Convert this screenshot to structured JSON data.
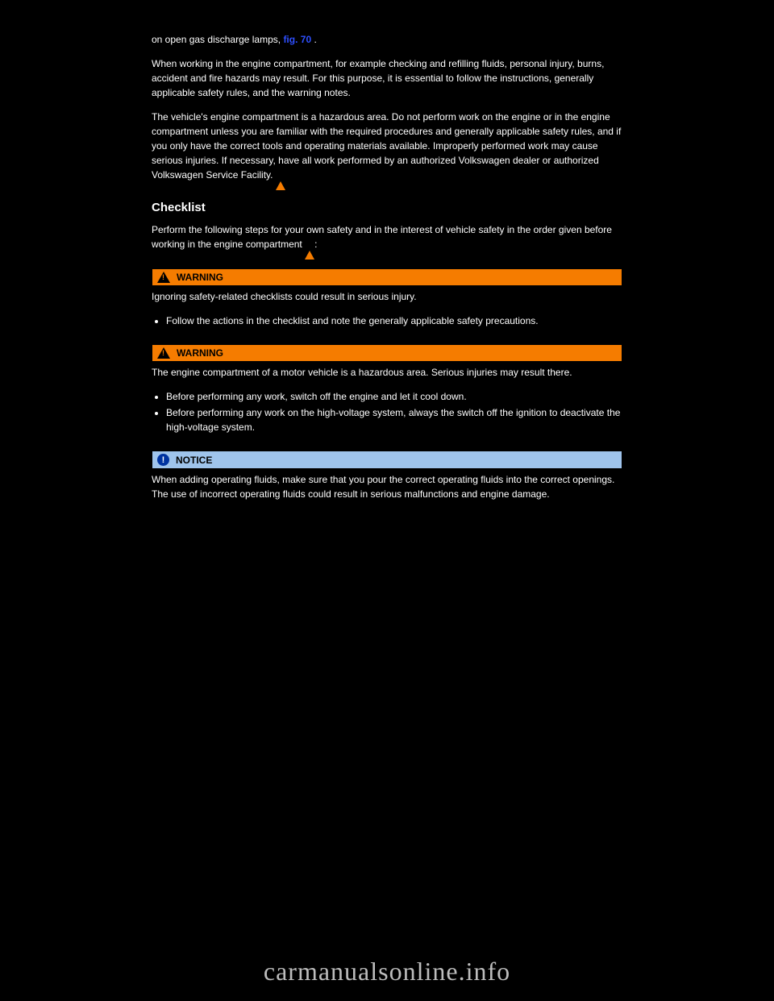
{
  "link_line": {
    "before": "on open gas discharge lamps, ",
    "link_text": "fig. 70",
    "after": " ."
  },
  "intro": "When working in the engine compartment, for example checking and refilling fluids, personal injury, burns, accident and fire hazards may result. For this purpose, it is essential to follow the instructions, generally applicable safety rules, and the warning notes.",
  "engine_comp": "The vehicle's engine compartment is a hazardous area. Do not perform work on the engine or in the engine compartment unless you are familiar with the required procedures and generally applicable safety rules, and if you only have the correct tools and operating materials available. Improperly performed work may cause serious injuries. If necessary, have all work performed by an authorized Volkswagen dealer or authorized Volkswagen Service Facility. ",
  "checklist_heading": "Checklist",
  "checklist_text": "Perform the following steps for your own safety and in the interest of vehicle safety in the order given before working in the engine compartment ",
  "warning1": {
    "label": "WARNING",
    "body": "Ignoring safety-related checklists could result in serious injury.",
    "bullet": "Follow the actions in the checklist and note the generally applicable safety precautions."
  },
  "spacer_para": "",
  "warning2": {
    "label": "WARNING",
    "body": "The engine compartment of a motor vehicle is a hazardous area. Serious injuries may result there.",
    "bullets": [
      "Before performing any work, switch off the engine and let it cool down.",
      "Before performing any work on the high-voltage system, always the switch off the ignition to deactivate the high-voltage system."
    ]
  },
  "notice": {
    "label": "NOTICE",
    "body": "When adding operating fluids, make sure that you pour the correct operating fluids into the correct openings. The use of incorrect operating fluids could result in serious malfunctions and engine damage."
  },
  "watermark": "carmanualsonline.info"
}
